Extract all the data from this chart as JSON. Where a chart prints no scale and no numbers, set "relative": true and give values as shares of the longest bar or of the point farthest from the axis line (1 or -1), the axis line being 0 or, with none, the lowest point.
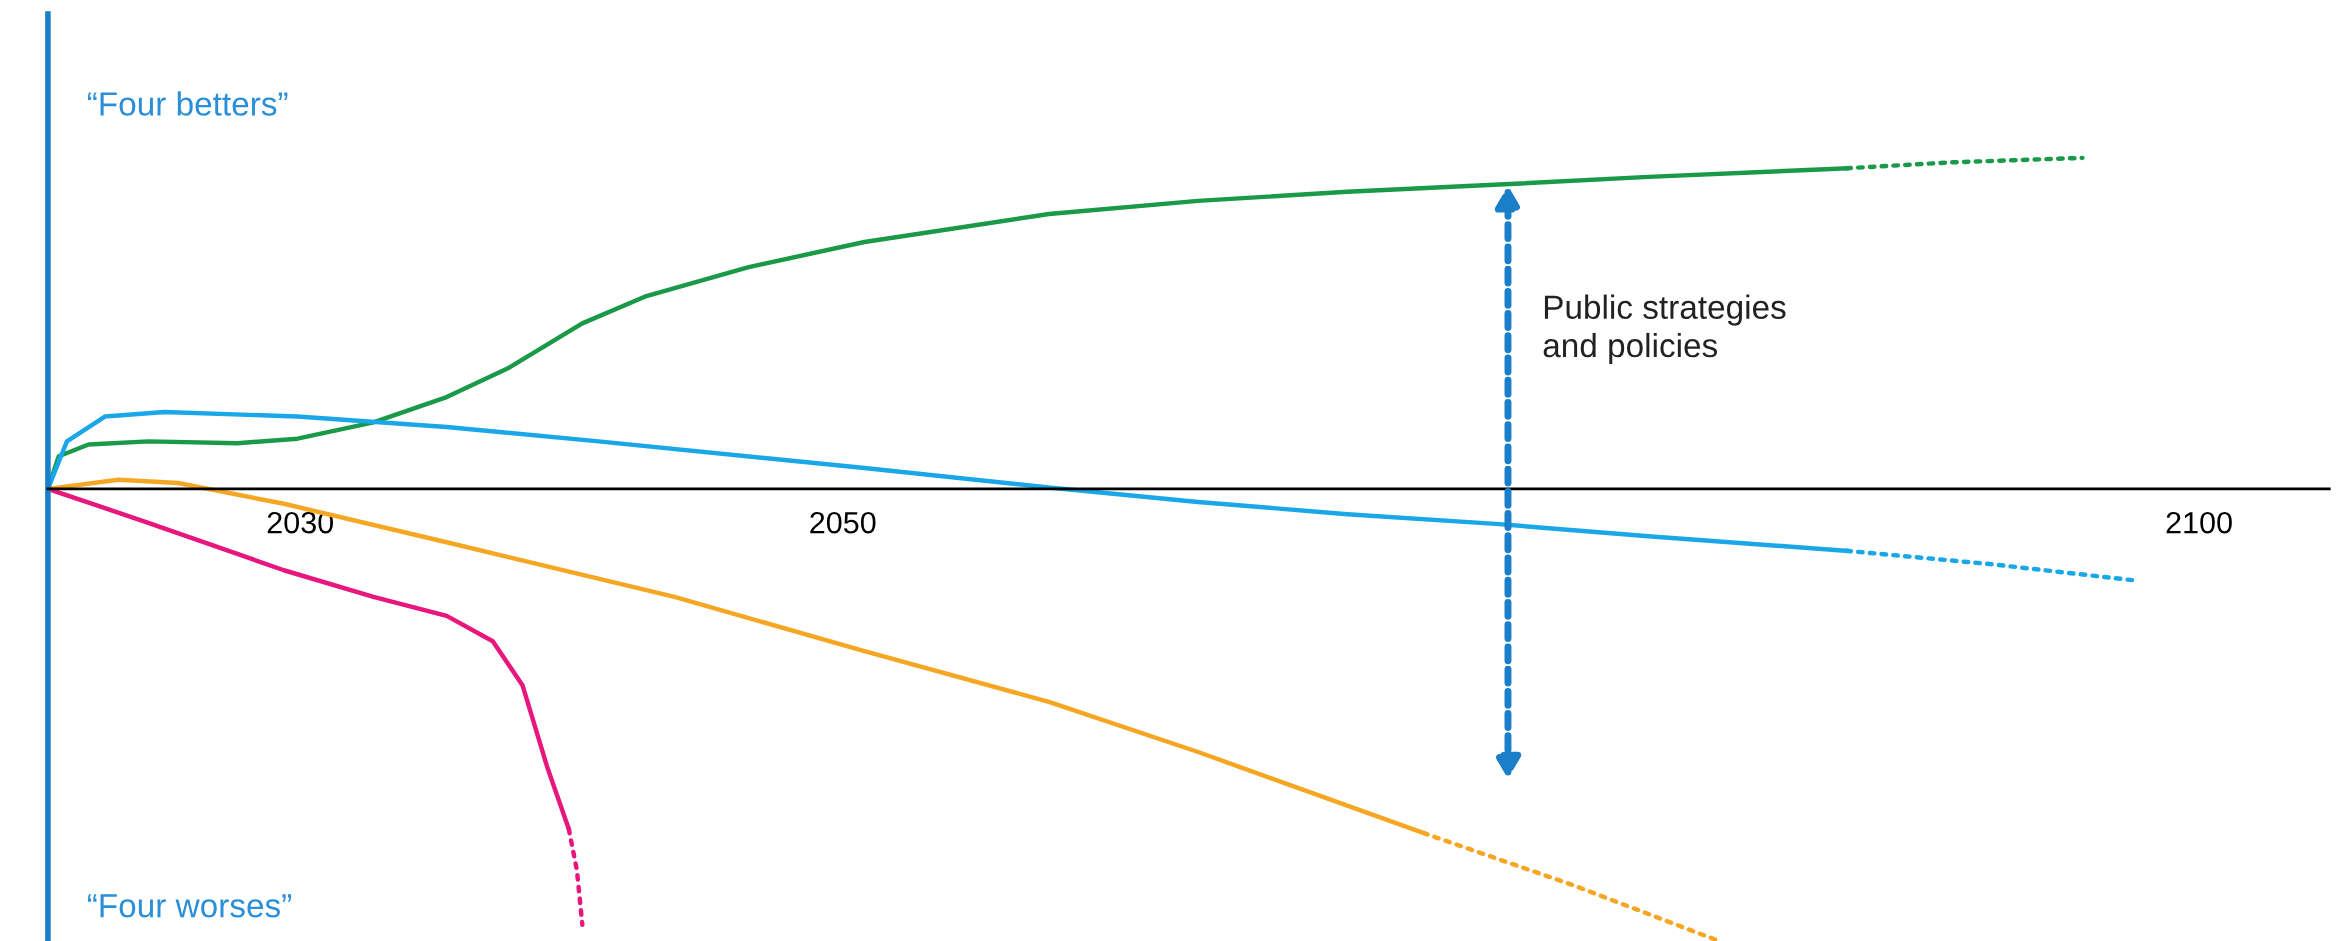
{
  "chart_data": {
    "type": "line",
    "relative": true,
    "tick_labels": "x",
    "grid": false,
    "legend": false,
    "xlim": [
      2020.7,
      2104.8
    ],
    "xticks": [
      2030,
      2050,
      2100
    ],
    "annotations": [
      "“Four betters”",
      "“Four worses”",
      "Public strategies\nand policies"
    ],
    "series": [
      {
        "color": "#1a9a48",
        "line_style": "solid",
        "x": [
          2020.7,
          2021.1,
          2022.2,
          2024.4,
          2027.7,
          2029.9,
          2032.7,
          2035.4,
          2037.7,
          2040.4,
          2042.7,
          2046.5,
          2050.8,
          2057.6,
          2063.1,
          2068.6,
          2074.2,
          2079.7,
          2087.0
        ],
        "values": [
          0,
          0.072,
          0.098,
          0.105,
          0.101,
          0.111,
          0.147,
          0.203,
          0.268,
          0.366,
          0.425,
          0.49,
          0.546,
          0.608,
          0.637,
          0.657,
          0.673,
          0.69,
          0.709
        ]
      },
      {
        "color": "#1a9a48",
        "line_style": "dotted",
        "x": [
          2087.0,
          2090.8,
          2095.7
        ],
        "values": [
          0.709,
          0.722,
          0.732
        ]
      },
      {
        "color": "#1aa7e8",
        "line_style": "solid",
        "x": [
          2020.7,
          2021.4,
          2022.8,
          2025.0,
          2029.9,
          2035.4,
          2041.0,
          2050.8,
          2057.6,
          2063.1,
          2068.6,
          2074.2,
          2079.7,
          2087.0
        ],
        "values": [
          0,
          0.105,
          0.16,
          0.17,
          0.16,
          0.137,
          0.105,
          0.046,
          0.003,
          -0.029,
          -0.056,
          -0.078,
          -0.105,
          -0.137
        ]
      },
      {
        "color": "#1aa7e8",
        "line_style": "dotted",
        "x": [
          2087.0,
          2092.4,
          2097.7
        ],
        "values": [
          -0.137,
          -0.167,
          -0.203
        ]
      },
      {
        "color": "#f5a623",
        "line_style": "solid",
        "x": [
          2020.7,
          2023.3,
          2025.5,
          2029.4,
          2035.4,
          2043.8,
          2050.8,
          2057.6,
          2063.1,
          2071.4
        ],
        "values": [
          0,
          0.02,
          0.013,
          -0.033,
          -0.118,
          -0.239,
          -0.359,
          -0.471,
          -0.582,
          -0.761
        ]
      },
      {
        "color": "#f5a623",
        "line_style": "dotted",
        "x": [
          2071.4,
          2076.9,
          2082.3
        ],
        "values": [
          -0.761,
          -0.876,
          -1
        ]
      },
      {
        "color": "#e8177d",
        "line_style": "solid",
        "x": [
          2020.7,
          2024.4,
          2029.4,
          2032.7,
          2035.4,
          2037.1,
          2038.2,
          2039.1,
          2039.9
        ],
        "values": [
          0,
          -0.075,
          -0.18,
          -0.239,
          -0.281,
          -0.337,
          -0.435,
          -0.614,
          -0.752
        ]
      },
      {
        "color": "#e8177d",
        "line_style": "dotted",
        "x": [
          2039.9,
          2040.2,
          2040.4
        ],
        "values": [
          -0.752,
          -0.843,
          -0.964
        ]
      }
    ]
  }
}
